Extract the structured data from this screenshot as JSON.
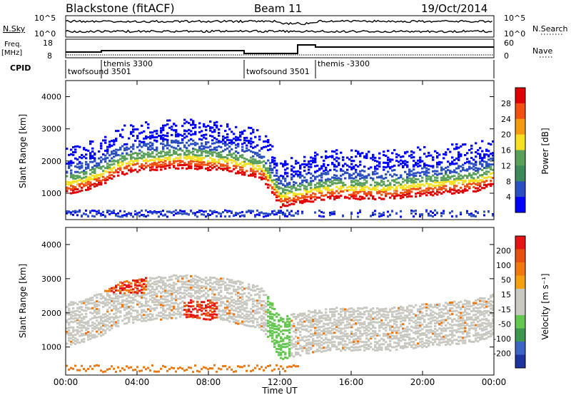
{
  "header": {
    "station": "Blackstone (fitACF)",
    "beam": "Beam 11",
    "date": "19/Oct/2014"
  },
  "noise_panel": {
    "left_label": "N.Sky",
    "right_label": "N.Search",
    "tick_top": "10^5",
    "tick_bottom": "10^0"
  },
  "freq_panel": {
    "left_label": "Freq.",
    "left_unit": "[MHz]",
    "left_ticks": [
      "18",
      "8"
    ],
    "right_label": "Nave",
    "right_ticks": [
      "60",
      "0"
    ]
  },
  "cpid_panel": {
    "label": "CPID",
    "modes": [
      {
        "start": 0.0,
        "end": 2.0,
        "name": "twofsound 3501"
      },
      {
        "start": 2.0,
        "end": 10.0,
        "name": "themis 3300"
      },
      {
        "start": 10.0,
        "end": 14.0,
        "name": "twofsound 3501"
      },
      {
        "start": 14.0,
        "end": 24.0,
        "name": "themis -3300"
      }
    ]
  },
  "colors": {
    "power_scale": [
      "#0000ff",
      "#2b4fc0",
      "#3c8a5a",
      "#5aa05a",
      "#f7e020",
      "#f59a10",
      "#f05010",
      "#e00000"
    ],
    "velocity_scale": [
      "#1e32a0",
      "#3c64c8",
      "#3c9650",
      "#64c850",
      "#c8c8c0",
      "#c8c8c0",
      "#f5a010",
      "#f07810",
      "#e65010",
      "#e61414"
    ]
  },
  "chart_data": [
    {
      "type": "heatmap",
      "name": "power",
      "ylabel": "Slant Range [km]",
      "xlabel": "Time UT",
      "xlim": [
        0,
        24
      ],
      "ylim": [
        180,
        4500
      ],
      "yticks": [
        "1000",
        "2000",
        "3000",
        "4000"
      ],
      "xticks": [
        "00:00",
        "04:00",
        "08:00",
        "12:00",
        "16:00",
        "20:00",
        "00:00"
      ],
      "colorbar": {
        "label": "Power [dB]",
        "range": [
          0,
          32
        ],
        "ticks": [
          "4",
          "8",
          "12",
          "16",
          "20",
          "24",
          "28"
        ]
      },
      "scatter_bands": [
        {
          "t": [
            0,
            1,
            2,
            3,
            4,
            5,
            6,
            7,
            8,
            9,
            10,
            11,
            12,
            13,
            14,
            15,
            16,
            17,
            18,
            19,
            20,
            21,
            22,
            23,
            24
          ],
          "range_km": [
            1300,
            1400,
            1600,
            1900,
            2000,
            2050,
            2100,
            2100,
            2050,
            2000,
            1900,
            1750,
            900,
            1000,
            1100,
            1150,
            1150,
            1150,
            1150,
            1200,
            1250,
            1300,
            1350,
            1400,
            1600
          ],
          "power_db": 28
        }
      ]
    },
    {
      "type": "heatmap",
      "name": "velocity",
      "ylabel": "Slant Range [km]",
      "xlabel": "Time UT",
      "xlim": [
        0,
        24
      ],
      "ylim": [
        180,
        4500
      ],
      "yticks": [
        "1000",
        "2000",
        "3000",
        "4000"
      ],
      "xticks": [
        "00:00",
        "04:00",
        "08:00",
        "12:00",
        "16:00",
        "20:00",
        "00:00"
      ],
      "colorbar": {
        "label": "Velocity [m s⁻¹]",
        "range": [
          -250,
          250
        ],
        "ticks": [
          "200",
          "100",
          "50",
          "15",
          "-15",
          "-50",
          "-100",
          "-200"
        ]
      }
    }
  ]
}
